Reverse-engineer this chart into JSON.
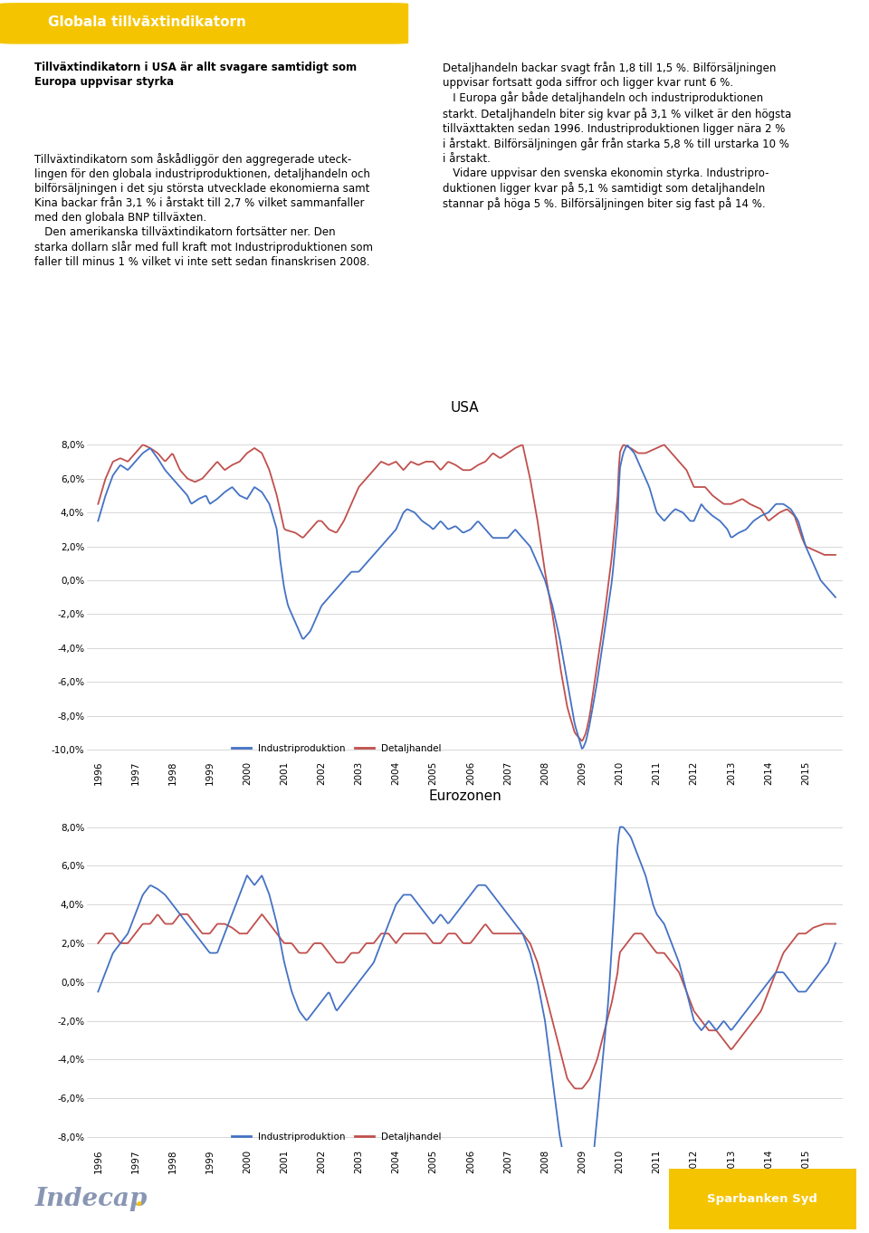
{
  "title_header": "Globala tillväxtindikatorn",
  "header_bg": "#F5C400",
  "header_text_color": "#FFFFFF",
  "body_bg": "#FFFFFF",
  "chart1_title": "USA",
  "chart2_title": "Eurozonen",
  "legend_industri": "Industriproduktion",
  "legend_detail": "Detaljhandel",
  "color_industri": "#4472C4",
  "color_detail": "#C0504D",
  "ylim_usa": [
    -10.5,
    9.5
  ],
  "ylim_euro": [
    -8.5,
    9.0
  ],
  "yticks_usa": [
    -10.0,
    -8.0,
    -6.0,
    -4.0,
    -2.0,
    0.0,
    2.0,
    4.0,
    6.0,
    8.0
  ],
  "yticks_euro": [
    -8.0,
    -6.0,
    -4.0,
    -2.0,
    0.0,
    2.0,
    4.0,
    6.0,
    8.0
  ],
  "footer_left": "Indecap.",
  "footer_right": "Sparbanken Syd",
  "line_width": 1.3,
  "text_left_bold": "Tillväxtindikatorn i USA är allt svagare samtidigt som\nEuropa uppvisar styrka",
  "text_left_body": "Tillväxtindikatorn som åskådliggör den aggregerade uteck-\nlingen för den globala industriproduktionen, detaljhandeln och\nbilförsäljningen i det sju största utvecklade ekonomierna samt\nKina backar från 3,1 % i årstakt till 2,7 % vilket sammanfaller\nmed den globala BNP tillväxten.\n   Den amerikanska tillväxtindikatorn fortsätter ner. Den\nstarka dollarn slår med full kraft mot Industriproduktionen som\nfaller till minus 1 % vilket vi inte sett sedan finanskrisen 2008.",
  "text_right_body": "Detaljhandeln backar svagt från 1,8 till 1,5 %. Bilförsäljningen\nuppvisar fortsatt goda siffror och ligger kvar runt 6 %.\n   I Europa går både detaljhandeln och industriproduktionen\nstarkt. Detaljhandeln biter sig kvar på 3,1 % vilket är den högsta\ntillväxttakten sedan 1996. Industriproduktionen ligger nära 2 %\ni årstakt. Bilförsäljningen går från starka 5,8 % till urstarka 10 %\ni årstakt.\n   Vidare uppvisar den svenska ekonomin styrka. Industripro-\nduktionen ligger kvar på 5,1 % samtidigt som detaljhandeln\nstannar på höga 5 %. Bilförsäljningen biter sig fast på 14 %."
}
